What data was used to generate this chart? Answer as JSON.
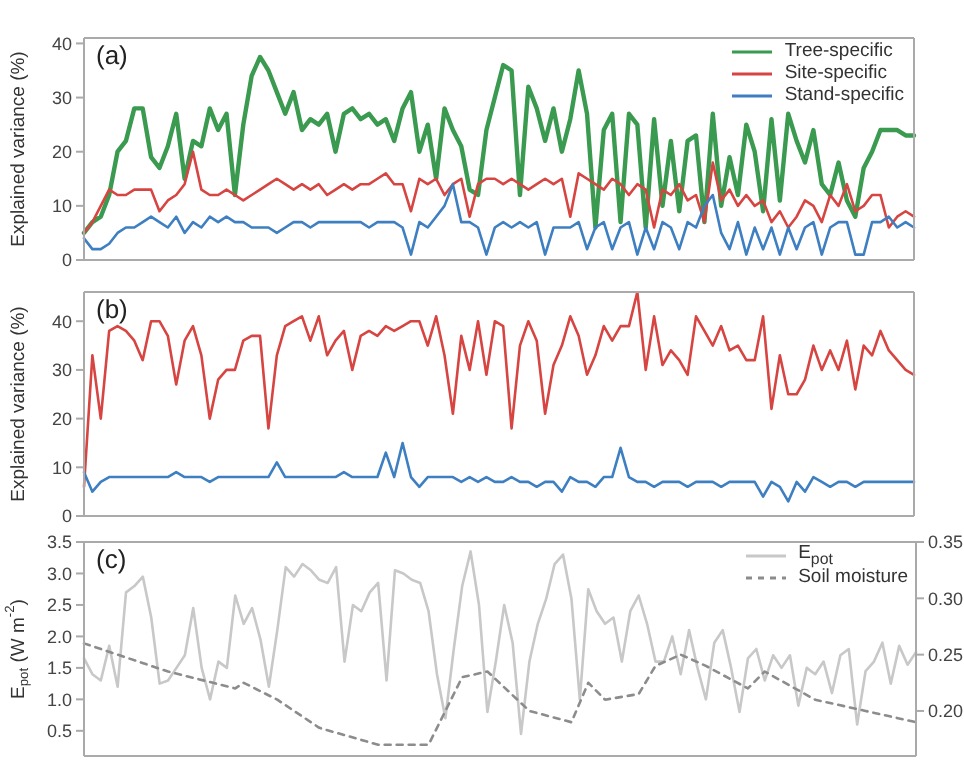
{
  "chart_data": [
    {
      "type": "line",
      "title": "(a)",
      "ylabel": "Explained variance (%)",
      "ylim": [
        0,
        41
      ],
      "yticks": [
        0,
        10,
        20,
        30,
        40
      ],
      "tick_labels": "y",
      "legend": "top right",
      "categories": [
        null,
        null,
        null,
        null,
        null,
        null,
        null,
        null,
        null,
        null,
        null,
        null,
        null,
        null,
        null,
        null,
        null,
        null,
        null,
        null,
        null,
        null,
        null,
        null,
        null,
        null,
        null,
        null,
        null,
        null,
        null,
        null,
        null,
        null,
        null,
        null,
        null,
        null,
        null,
        null,
        null,
        null,
        null,
        null,
        null,
        null,
        null,
        null,
        null,
        null,
        null,
        null,
        null,
        null,
        null,
        null,
        null,
        null,
        null,
        null,
        null,
        null,
        null,
        null,
        null,
        null,
        null,
        null,
        null,
        null,
        null,
        null,
        null,
        null,
        null,
        null,
        null,
        null,
        null,
        null,
        null,
        null,
        null,
        null,
        null,
        null,
        null,
        null,
        null,
        null,
        null,
        null,
        null,
        null,
        null,
        null,
        null,
        null,
        null,
        null
      ],
      "series": [
        {
          "name": "Tree-specific",
          "color": "#3a9a4f",
          "values": [
            5,
            7,
            8,
            12,
            20,
            22,
            28,
            28,
            19,
            17,
            21,
            27,
            15,
            22,
            21,
            28,
            24,
            27,
            12,
            25,
            34,
            37.5,
            35,
            31,
            27,
            31,
            24,
            26,
            25,
            27,
            20,
            27,
            28,
            26,
            27,
            25,
            26,
            22,
            28,
            31,
            20,
            25,
            15,
            28,
            24,
            21,
            13,
            12,
            24,
            30,
            36,
            35,
            12,
            32,
            28,
            22,
            28,
            20,
            26,
            35,
            27,
            6,
            24,
            27,
            7,
            27,
            25,
            6,
            26,
            10,
            22,
            9,
            22,
            23,
            7,
            27,
            10,
            19,
            12,
            25,
            20,
            9,
            26,
            11,
            27,
            22,
            18,
            24,
            14,
            12,
            18,
            11,
            8,
            17,
            20,
            24,
            24,
            24,
            23,
            23
          ]
        },
        {
          "name": "Site-specific",
          "color": "#d64541",
          "values": [
            5,
            7,
            10,
            13,
            12,
            12,
            13,
            13,
            13,
            9,
            11,
            12,
            14,
            20,
            13,
            12,
            12,
            13,
            12,
            11,
            12,
            13,
            14,
            15,
            14,
            13,
            14,
            13,
            14,
            12,
            13,
            14,
            13,
            14,
            14,
            15,
            16,
            14,
            14,
            9,
            15,
            14,
            15,
            12,
            14,
            15,
            8,
            14,
            15,
            15,
            14,
            15,
            14,
            13,
            14,
            15,
            14,
            15,
            8,
            16,
            15,
            14,
            13,
            15,
            14,
            12,
            14,
            13,
            6,
            13,
            12,
            14,
            11,
            12,
            7,
            18,
            11,
            13,
            10,
            12,
            10,
            11,
            7,
            9,
            6,
            8,
            11,
            10,
            7,
            12,
            10,
            14,
            9,
            10,
            12,
            12,
            6,
            8,
            9,
            8
          ]
        },
        {
          "name": "Stand-specific",
          "color": "#3d7fc1",
          "values": [
            4,
            2,
            2,
            3,
            5,
            6,
            6,
            7,
            8,
            7,
            6,
            8,
            5,
            7,
            6,
            8,
            7,
            8,
            7,
            7,
            6,
            6,
            6,
            5,
            6,
            7,
            7,
            6,
            7,
            7,
            7,
            7,
            7,
            7,
            6,
            7,
            7,
            7,
            6,
            1,
            7,
            6,
            8,
            10,
            14,
            7,
            7,
            6,
            1,
            6,
            7,
            6,
            7,
            6,
            7,
            1,
            6,
            6,
            6,
            7,
            2,
            6,
            7,
            2,
            6,
            7,
            1,
            6,
            2,
            7,
            6,
            2,
            7,
            6,
            10,
            12,
            5,
            2,
            7,
            1,
            6,
            2,
            6,
            1,
            6,
            2,
            6,
            7,
            1,
            6,
            7,
            7,
            1,
            1,
            7,
            7,
            8,
            6,
            7,
            6
          ]
        }
      ]
    },
    {
      "type": "line",
      "title": "(b)",
      "ylabel": "Explained variance (%)",
      "ylim": [
        0,
        46
      ],
      "yticks": [
        0,
        10,
        20,
        30,
        40
      ],
      "tick_labels": "y",
      "categories": [
        null,
        null,
        null,
        null,
        null,
        null,
        null,
        null,
        null,
        null,
        null,
        null,
        null,
        null,
        null,
        null,
        null,
        null,
        null,
        null,
        null,
        null,
        null,
        null,
        null,
        null,
        null,
        null,
        null,
        null,
        null,
        null,
        null,
        null,
        null,
        null,
        null,
        null,
        null,
        null,
        null,
        null,
        null,
        null,
        null,
        null,
        null,
        null,
        null,
        null,
        null,
        null,
        null,
        null,
        null,
        null,
        null,
        null,
        null,
        null,
        null,
        null,
        null,
        null,
        null,
        null,
        null,
        null,
        null,
        null,
        null,
        null,
        null,
        null,
        null,
        null,
        null,
        null,
        null,
        null,
        null,
        null,
        null,
        null,
        null,
        null,
        null,
        null,
        null,
        null,
        null,
        null,
        null,
        null,
        null,
        null,
        null,
        null,
        null,
        null
      ],
      "series": [
        {
          "color": "#d64541",
          "values": [
            6,
            33,
            20,
            38,
            39,
            38,
            36,
            32,
            40,
            40,
            37,
            27,
            36,
            39,
            33,
            20,
            28,
            30,
            30,
            36,
            37,
            37,
            18,
            33,
            39,
            40,
            41,
            36,
            41,
            33,
            36,
            38,
            30,
            37,
            38,
            37,
            39,
            38,
            39,
            40,
            40,
            35,
            41,
            33,
            21,
            37,
            30,
            40,
            29,
            40,
            39,
            18,
            35,
            40,
            36,
            21,
            31,
            35,
            41,
            37,
            29,
            33,
            39,
            36,
            39,
            39,
            46,
            30,
            41,
            31,
            34,
            32,
            29,
            41,
            38,
            35,
            39,
            34,
            35,
            32,
            32,
            41,
            22,
            33,
            25,
            25,
            28,
            35,
            30,
            34,
            30,
            36,
            26,
            35,
            33,
            38,
            34,
            32,
            30,
            29
          ]
        },
        {
          "color": "#3d7fc1",
          "values": [
            9,
            5,
            7,
            8,
            8,
            8,
            8,
            8,
            8,
            8,
            8,
            9,
            8,
            8,
            8,
            7,
            8,
            8,
            8,
            8,
            8,
            8,
            8,
            11,
            8,
            8,
            8,
            8,
            8,
            8,
            8,
            9,
            8,
            8,
            8,
            8,
            13,
            8,
            15,
            8,
            6,
            8,
            8,
            8,
            8,
            7,
            8,
            7,
            8,
            7,
            7,
            8,
            7,
            7,
            6,
            7,
            7,
            5,
            8,
            7,
            7,
            6,
            8,
            8,
            14,
            8,
            7,
            7,
            6,
            7,
            7,
            7,
            6,
            7,
            7,
            7,
            6,
            7,
            7,
            7,
            7,
            4,
            7,
            6,
            3,
            7,
            5,
            8,
            7,
            6,
            7,
            7,
            6,
            7,
            7,
            7,
            7,
            7,
            7,
            7
          ]
        }
      ]
    },
    {
      "type": "line",
      "title": "(c)",
      "ylabel": "E$_{pot}$ (W m$^{-2}$)",
      "ylim": [
        0.1,
        3.5
      ],
      "yticks": [
        0.5,
        {
          "value": 1,
          "label": "1.0"
        },
        1.5,
        {
          "value": 2,
          "label": "2.0"
        },
        2.5,
        {
          "value": 3,
          "label": "3.0"
        },
        3.5
      ],
      "y2lim": [
        0.16,
        0.35
      ],
      "y2ticks": [
        {
          "value": 0.2,
          "label": "0.20"
        },
        {
          "value": 0.25,
          "label": "0.25"
        },
        {
          "value": 0.3,
          "label": "0.30"
        },
        {
          "value": 0.35,
          "label": "0.35"
        }
      ],
      "tick_labels": "y",
      "legend": "top right",
      "categories": [
        null,
        null,
        null,
        null,
        null,
        null,
        null,
        null,
        null,
        null,
        null,
        null,
        null,
        null,
        null,
        null,
        null,
        null,
        null,
        null,
        null,
        null,
        null,
        null,
        null,
        null,
        null,
        null,
        null,
        null,
        null,
        null,
        null,
        null,
        null,
        null,
        null,
        null,
        null,
        null,
        null,
        null,
        null,
        null,
        null,
        null,
        null,
        null,
        null,
        null,
        null,
        null,
        null,
        null,
        null,
        null,
        null,
        null,
        null,
        null,
        null,
        null,
        null,
        null,
        null,
        null,
        null,
        null,
        null,
        null,
        null,
        null,
        null,
        null,
        null,
        null,
        null,
        null,
        null,
        null,
        null,
        null,
        null,
        null,
        null,
        null,
        null,
        null,
        null,
        null,
        null,
        null,
        null,
        null,
        null,
        null,
        null,
        null,
        null,
        null
      ],
      "series": [
        {
          "name": "E$_{pot}$",
          "color": "#c8c8c8",
          "values": [
            1.65,
            1.4,
            1.3,
            1.85,
            1.2,
            2.7,
            2.8,
            2.95,
            2.3,
            1.25,
            1.3,
            1.5,
            1.7,
            2.45,
            1.5,
            1.0,
            1.6,
            1.5,
            2.65,
            2.2,
            2.45,
            1.95,
            1.2,
            2.1,
            3.1,
            2.95,
            3.15,
            3.05,
            2.9,
            2.85,
            3.1,
            1.6,
            2.5,
            2.4,
            2.7,
            2.85,
            1.3,
            3.05,
            3.0,
            2.9,
            2.85,
            2.4,
            1.4,
            0.7,
            1.8,
            2.8,
            3.35,
            2.5,
            0.8,
            1.6,
            2.5,
            1.9,
            0.45,
            1.6,
            2.2,
            2.6,
            3.15,
            3.3,
            2.6,
            1.0,
            2.75,
            2.4,
            2.2,
            2.3,
            1.6,
            2.4,
            2.65,
            2.2,
            1.6,
            1.6,
            2.0,
            1.4,
            2.1,
            1.5,
            1.0,
            1.9,
            2.1,
            1.5,
            0.8,
            1.65,
            1.8,
            1.3,
            1.7,
            1.5,
            1.7,
            0.9,
            1.5,
            1.4,
            1.6,
            1.1,
            1.7,
            1.8,
            0.6,
            1.45,
            1.6,
            1.9,
            1.25,
            1.85,
            1.55,
            1.75
          ]
        },
        {
          "name": "Soil moisture",
          "color": "#8c8c8c",
          "axis": "y2",
          "line_style": "dashed",
          "values": [
            0.26,
            null,
            null,
            null,
            null,
            null,
            null,
            null,
            null,
            null,
            0.235,
            null,
            null,
            null,
            null,
            null,
            null,
            null,
            0.22,
            0.225,
            null,
            null,
            null,
            0.21,
            null,
            null,
            null,
            null,
            0.185,
            null,
            null,
            null,
            null,
            null,
            null,
            0.17,
            null,
            null,
            null,
            null,
            null,
            0.17,
            null,
            null,
            null,
            0.23,
            null,
            null,
            0.235,
            null,
            null,
            null,
            null,
            0.2,
            null,
            null,
            null,
            null,
            0.19,
            null,
            0.225,
            null,
            0.21,
            null,
            null,
            null,
            0.215,
            null,
            0.24,
            null,
            null,
            0.25,
            null,
            null,
            0.24,
            null,
            null,
            null,
            null,
            0.22,
            null,
            0.235,
            null,
            null,
            null,
            null,
            null,
            0.21,
            null,
            null,
            null,
            null,
            null,
            0.2,
            null,
            null,
            null,
            null,
            null,
            0.19
          ]
        }
      ]
    }
  ]
}
